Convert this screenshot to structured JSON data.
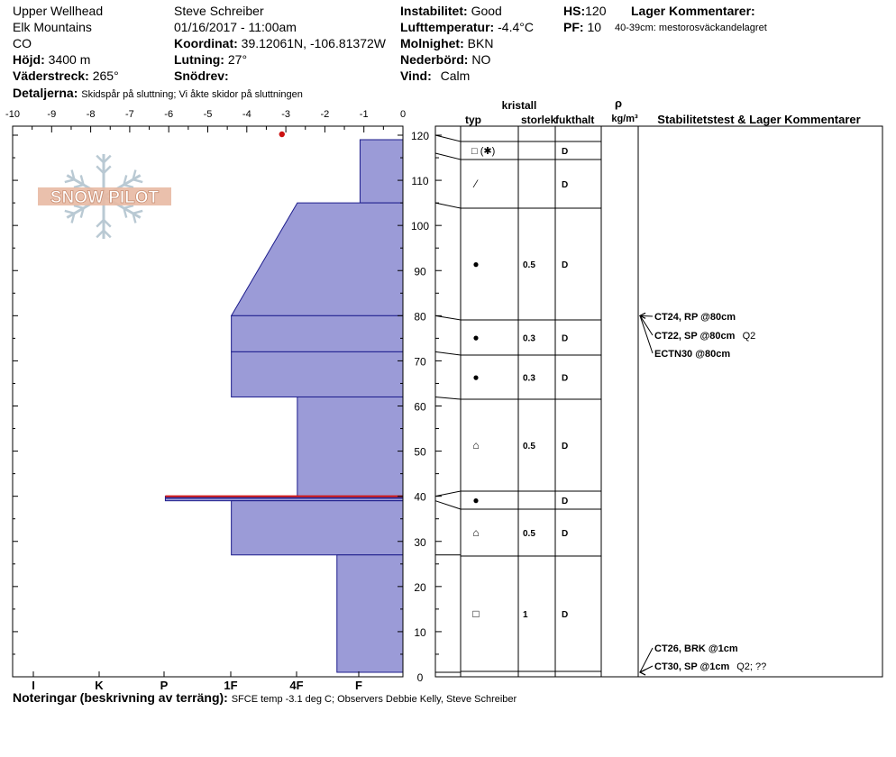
{
  "header": {
    "location": "Upper Wellhead",
    "range": "Elk Mountains",
    "state": "CO",
    "elevation_label": "Höjd:",
    "elevation_value": "3400 m",
    "aspect_label": "Väderstreck:",
    "aspect_value": "265°",
    "observer": "Steve Schreiber",
    "datetime": "01/16/2017 - 11:00am",
    "coord_label": "Koordinat:",
    "coord_value": "39.12061N, -106.81372W",
    "slope_label": "Lutning:",
    "slope_value": "27°",
    "drift_label": "Snödrev:",
    "drift_value": "",
    "stability_label": "Instabilitet:",
    "stability_value": "Good",
    "airtemp_label": "Lufttemperatur:",
    "airtemp_value": "-4.4°C",
    "sky_label": "Molnighet:",
    "sky_value": "BKN",
    "precip_label": "Nederbörd:",
    "precip_value": "NO",
    "wind_label": "Vind:",
    "wind_value": "Calm",
    "hs_label": "HS:",
    "hs_value": "120",
    "pf_label": "PF:",
    "pf_value": "10",
    "layer_comments_label": "Lager Kommentarer:",
    "layer_comment": "40-39cm: mestorosväckandelagret",
    "details_label": "Detaljerna:",
    "details_value": "Skidspår på sluttning;  Vi åkte skidor på sluttningen"
  },
  "columns": {
    "crystal": "kristall",
    "type": "typ",
    "size": "storlek",
    "moisture": "fukthalt",
    "rho": "ρ",
    "density_unit": "kg/m³",
    "stability": "Stabilitetstest & Lager Kommentarer"
  },
  "logo": {
    "text": "SNOW PILOT"
  },
  "notes": {
    "label": "Noteringar (beskrivning av terräng):",
    "value": "SFCE temp -3.1 deg C; Observers Debbie Kelly, Steve Schreiber"
  },
  "chart_data": {
    "type": "snow_profile",
    "temperature_axis": {
      "range": [
        -10,
        0
      ],
      "ticks": [
        "-10",
        "-9",
        "-8",
        "-7",
        "-6",
        "-5",
        "-4",
        "-3",
        "-2",
        "-1",
        "0"
      ]
    },
    "height_axis": {
      "range": [
        0,
        120
      ],
      "ticks": [
        "0",
        "10",
        "20",
        "30",
        "40",
        "50",
        "60",
        "70",
        "80",
        "90",
        "100",
        "110",
        "120"
      ]
    },
    "hardness_axis": {
      "ticks": [
        "I",
        "K",
        "P",
        "1F",
        "4F",
        "F"
      ],
      "scale": [
        5,
        4,
        3,
        2,
        1,
        0
      ]
    },
    "temperature_points": [
      {
        "depth_cm": 120,
        "temp_c": -3.1
      }
    ],
    "hardness_profile": [
      {
        "top": 120,
        "bottom": 119,
        "hardness": 0
      },
      {
        "top": 119,
        "bottom": 105,
        "hardness": 0.65
      },
      {
        "top": 105,
        "bottom": 80,
        "hardness_top": 1.6,
        "hardness_bottom": 2.6
      },
      {
        "top": 80,
        "bottom": 72,
        "hardness": 2.6
      },
      {
        "top": 72,
        "bottom": 62,
        "hardness": 2.6
      },
      {
        "top": 62,
        "bottom": 40,
        "hardness": 1.6
      },
      {
        "top": 40,
        "bottom": 39,
        "hardness": 3.6
      },
      {
        "top": 39,
        "bottom": 27,
        "hardness": 2.6
      },
      {
        "top": 27,
        "bottom": 1,
        "hardness": 1.0
      },
      {
        "top": 1,
        "bottom": 0,
        "hardness": 0
      }
    ],
    "weak_layer": {
      "top": 40,
      "bottom": 39
    },
    "layers": [
      {
        "top": 120,
        "bottom": 116,
        "type": "□ (✱)",
        "size": "",
        "moisture": "D"
      },
      {
        "top": 116,
        "bottom": 105,
        "type": "⁄",
        "size": "",
        "moisture": "D"
      },
      {
        "top": 105,
        "bottom": 80,
        "type": "●",
        "size": "0.5",
        "moisture": "D"
      },
      {
        "top": 80,
        "bottom": 72,
        "type": "●",
        "size": "0.3",
        "moisture": "D"
      },
      {
        "top": 72,
        "bottom": 62,
        "type": "●",
        "size": "0.3",
        "moisture": "D"
      },
      {
        "top": 62,
        "bottom": 42,
        "type": "⌂",
        "size": "0.5",
        "moisture": "D"
      },
      {
        "top": 42,
        "bottom": 37,
        "type": "●",
        "size": "",
        "moisture": "D"
      },
      {
        "top": 37,
        "bottom": 27,
        "type": "⌂",
        "size": "0.5",
        "moisture": "D"
      },
      {
        "top": 27,
        "bottom": 1,
        "type": "□",
        "size": "1",
        "moisture": "D"
      }
    ],
    "stability_tests": [
      {
        "depth_cm": 80,
        "text": "CT24, RP @80cm",
        "extra": ""
      },
      {
        "depth_cm": 80,
        "text": "CT22, SP @80cm",
        "extra": "Q2"
      },
      {
        "depth_cm": 80,
        "text": "ECTN30 @80cm",
        "extra": ""
      },
      {
        "depth_cm": 1,
        "text": "CT26, BRK @1cm",
        "extra": ""
      },
      {
        "depth_cm": 1,
        "text": "CT30, SP @1cm",
        "extra": "Q2; ??"
      }
    ]
  }
}
